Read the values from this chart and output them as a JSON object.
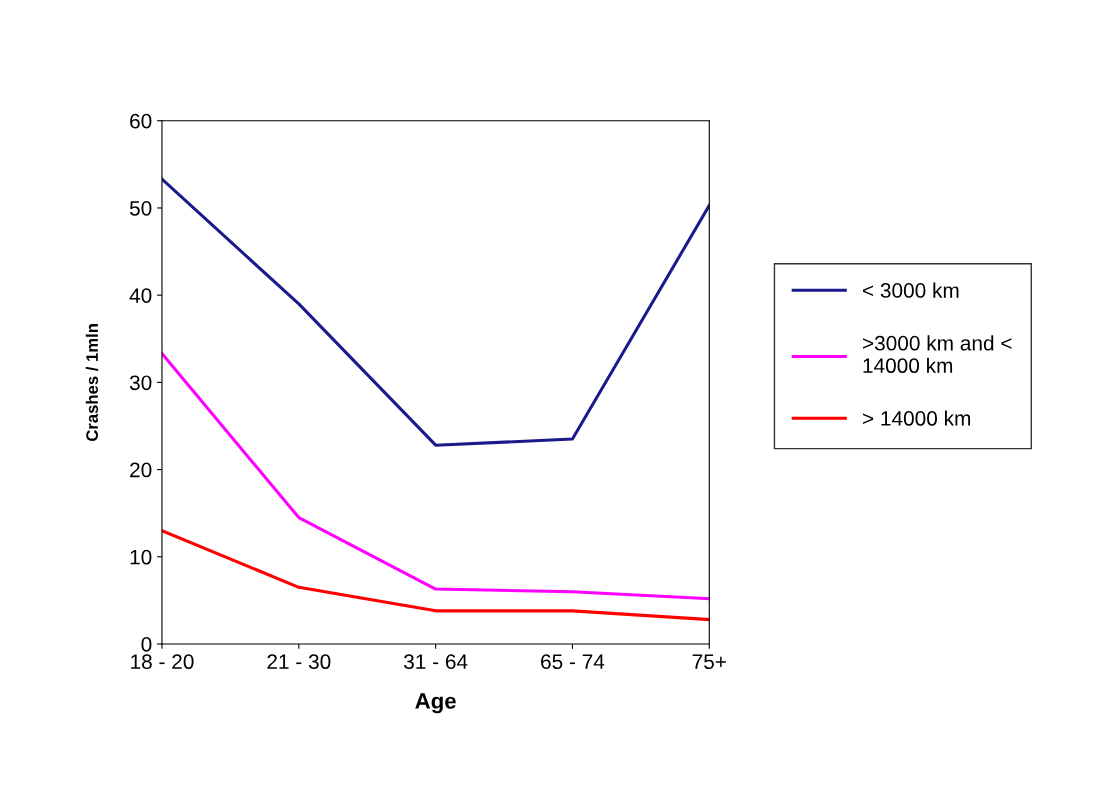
{
  "chart_data": {
    "type": "line",
    "xlabel": "Age",
    "ylabel": "Crashes / 1mln",
    "categories": [
      "18 - 20",
      "21 - 30",
      "31 - 64",
      "65 - 74",
      "75+"
    ],
    "series": [
      {
        "name": "< 3000 km",
        "color": "#1a1a8c",
        "values": [
          53.3,
          39,
          22.8,
          23.5,
          50.3
        ]
      },
      {
        "name": ">3000 km and < 14000 km",
        "color": "#ff00ff",
        "values": [
          33.3,
          14.5,
          6.3,
          6,
          5.2
        ]
      },
      {
        "name": "> 14000 km",
        "color": "#ff0000",
        "values": [
          13,
          6.5,
          3.8,
          3.8,
          2.8
        ]
      }
    ],
    "ylim": [
      0,
      60
    ],
    "yticks": [
      0,
      10,
      20,
      30,
      40,
      50,
      60
    ],
    "grid": false,
    "legend": "right",
    "marker": "none",
    "line_style": "solid"
  }
}
